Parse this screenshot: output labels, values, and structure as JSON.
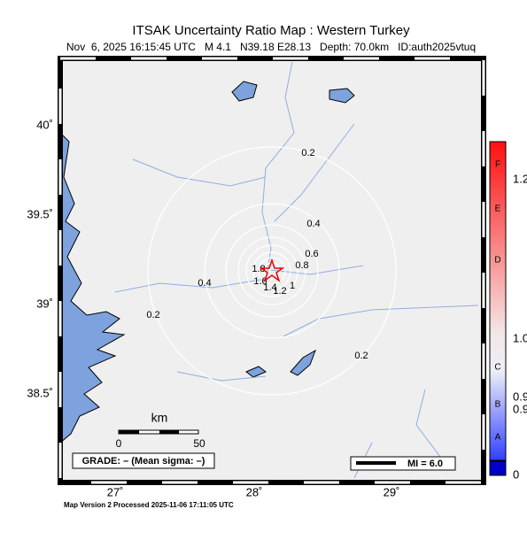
{
  "header": {
    "title": "ITSAK Uncertainty Ratio Map : Western Turkey",
    "subtitle": "Nov  6, 2025 16:15:45 UTC   M 4.1   N39.18 E28.13   Depth: 70.0km   ID:auth2025vtuq"
  },
  "axes": {
    "lat_labels": [
      "40˚",
      "39.5˚",
      "39˚",
      "38.5˚"
    ],
    "lon_labels": [
      "27˚",
      "28˚",
      "29˚"
    ]
  },
  "contour_labels": [
    "0.2",
    "0.4",
    "0.6",
    "0.8",
    "1",
    "1.2",
    "1.4",
    "1.6",
    "1.8",
    "0.2",
    "0.4",
    "0.2"
  ],
  "scale": {
    "unit": "km",
    "start": "0",
    "end": "50"
  },
  "grade": "GRADE: – (Mean sigma: –)",
  "legend": "MI = 6.0",
  "colorbar": {
    "letters": [
      "F",
      "E",
      "D",
      "C",
      "B",
      "A"
    ],
    "values": [
      "1.2",
      "1.0",
      "0.9",
      "0.9",
      "0"
    ]
  },
  "footer": "Map Version 2 Processed 2025-11-06 17:11:05 UTC"
}
